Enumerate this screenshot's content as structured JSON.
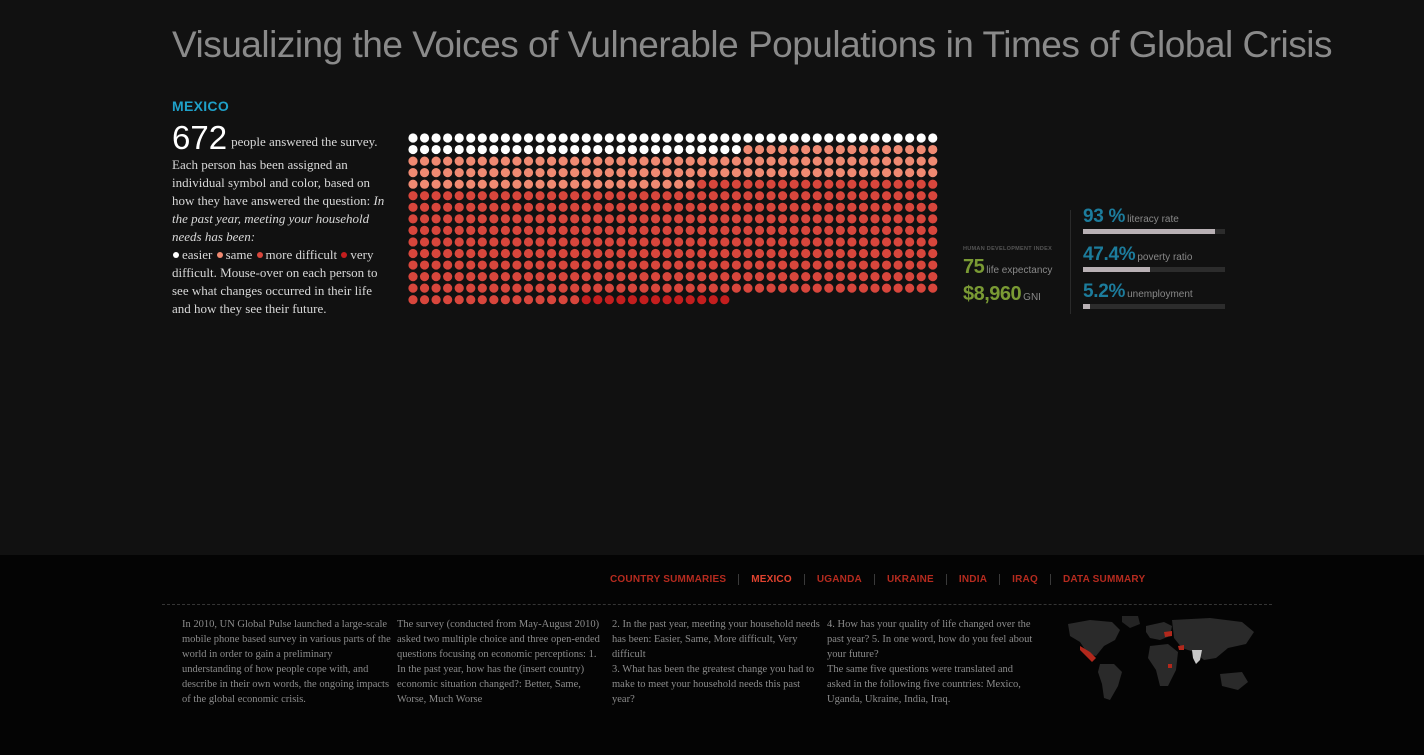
{
  "title": "Visualizing the Voices of Vulnerable Populations in Times of Global Crisis",
  "country": "MEXICO",
  "intro": {
    "count": "672",
    "after_count": "people answered the survey. Each person has been assigned an individual symbol and color, based on how they have answered the question:",
    "question": "In the past year, meeting your household needs has been:",
    "legend": [
      {
        "label": "easier",
        "color": "#ffffff"
      },
      {
        "label": "same",
        "color": "#f08a72"
      },
      {
        "label": "more difficult",
        "color": "#d8463c"
      },
      {
        "label": "very difficult.",
        "color": "#c41e1e"
      }
    ],
    "closing": "Mouse-over on each person to see what changes occurred in their life and how they see their future."
  },
  "colors": {
    "accent_blue": "#1fa0c8",
    "stat_blue": "#1c7c9c",
    "hdi_green": "#7a9a34",
    "nav_red": "#b62b1f",
    "dot_easier": "#ffffff",
    "dot_same": "#f08a72",
    "dot_more_difficult": "#d8463c",
    "dot_very_difficult": "#c41e1e"
  },
  "survey_counts": {
    "easier": 75,
    "same": 134,
    "more_difficult": 450,
    "very_difficult": 13,
    "total": 672
  },
  "hdi": {
    "title": "HUMAN DEVELOPMENT INDEX",
    "life_expectancy_value": "75",
    "life_expectancy_label": "life expectancy",
    "gni_value": "$8,960",
    "gni_label": "GNI"
  },
  "stats": [
    {
      "value": "93 %",
      "label": "literacy rate",
      "fraction": 0.93
    },
    {
      "value": "47.4%",
      "label": "poverty ratio",
      "fraction": 0.474
    },
    {
      "value": "5.2%",
      "label": "unemployment",
      "fraction": 0.052
    }
  ],
  "nav": [
    {
      "label": "COUNTRY SUMMARIES",
      "active": false
    },
    {
      "label": "MEXICO",
      "active": true
    },
    {
      "label": "UGANDA",
      "active": false
    },
    {
      "label": "UKRAINE",
      "active": false
    },
    {
      "label": "INDIA",
      "active": false
    },
    {
      "label": "IRAQ",
      "active": false
    },
    {
      "label": "DATA SUMMARY",
      "active": false
    }
  ],
  "footer_columns": [
    "In 2010, UN Global Pulse launched a large-scale mobile phone based survey in various parts of the world in order to gain a preliminary understanding of how people cope with, and describe in their own words, the ongoing impacts of the global economic crisis.",
    "The survey (conducted from May-August 2010) asked two multiple choice and three open-ended questions focusing on economic perceptions: 1. In the past year, how has the (insert country) economic situation changed?: Better, Same, Worse, Much Worse",
    "2. In the past year, meeting your household needs has been: Easier, Same, More difficult, Very difficult\n3. What has been the greatest change you had to make to meet your household needs this past year?",
    "4. How has your quality of life changed over the past year? 5. In one word, how do you feel about your future?\nThe same five questions were translated and asked in the following five countries: Mexico, Uganda, Ukraine, India, Iraq."
  ],
  "map": {
    "icon": "world-map-icon",
    "highlight_color": "#b2281c"
  }
}
